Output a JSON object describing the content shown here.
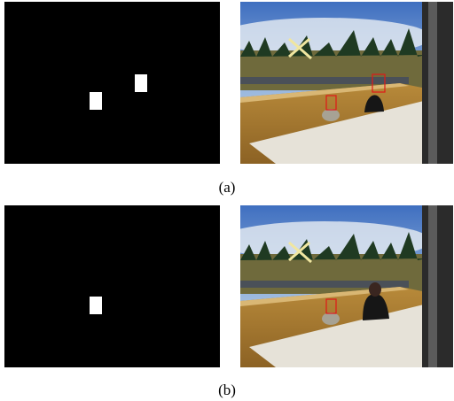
{
  "figure": {
    "row_a": {
      "caption": "(a)"
    },
    "row_b": {
      "caption": "(b)"
    }
  },
  "colors": {
    "mask_background": "#000000",
    "mask_blob": "#ffffff",
    "detection_box": "#e01818"
  }
}
